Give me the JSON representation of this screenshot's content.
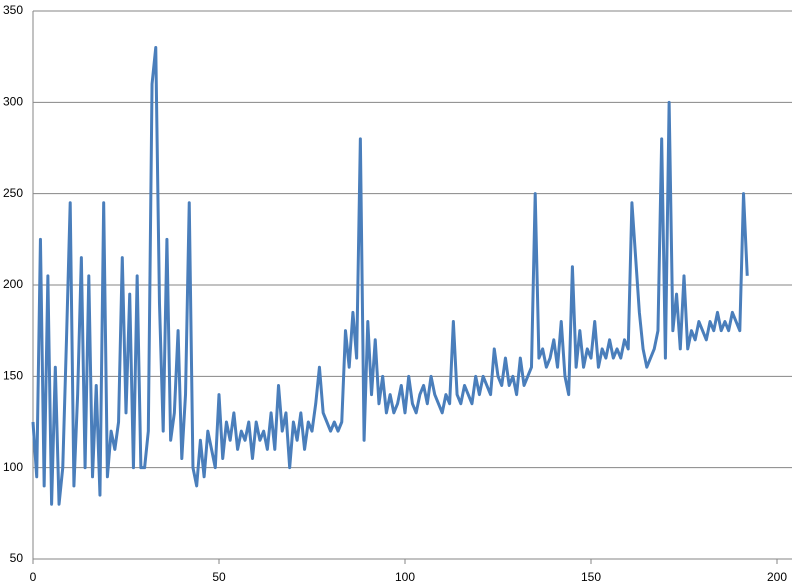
{
  "chart_data": {
    "type": "line",
    "x": [
      0,
      1,
      2,
      3,
      4,
      5,
      6,
      7,
      8,
      9,
      10,
      11,
      12,
      13,
      14,
      15,
      16,
      17,
      18,
      19,
      20,
      21,
      22,
      23,
      24,
      25,
      26,
      27,
      28,
      29,
      30,
      31,
      32,
      33,
      34,
      35,
      36,
      37,
      38,
      39,
      40,
      41,
      42,
      43,
      44,
      45,
      46,
      47,
      48,
      49,
      50,
      51,
      52,
      53,
      54,
      55,
      56,
      57,
      58,
      59,
      60,
      61,
      62,
      63,
      64,
      65,
      66,
      67,
      68,
      69,
      70,
      71,
      72,
      73,
      74,
      75,
      76,
      77,
      78,
      79,
      80,
      81,
      82,
      83,
      84,
      85,
      86,
      87,
      88,
      89,
      90,
      91,
      92,
      93,
      94,
      95,
      96,
      97,
      98,
      99,
      100,
      101,
      102,
      103,
      104,
      105,
      106,
      107,
      108,
      109,
      110,
      111,
      112,
      113,
      114,
      115,
      116,
      117,
      118,
      119,
      120,
      121,
      122,
      123,
      124,
      125,
      126,
      127,
      128,
      129,
      130,
      131,
      132,
      133,
      134,
      135,
      136,
      137,
      138,
      139,
      140,
      141,
      142,
      143,
      144,
      145,
      146,
      147,
      148,
      149,
      150,
      151,
      152,
      153,
      154,
      155,
      156,
      157,
      158,
      159,
      160,
      161,
      162,
      163,
      164,
      165,
      166,
      167,
      168,
      169,
      170,
      171,
      172,
      173,
      174,
      175,
      176,
      177,
      178,
      179,
      180,
      181,
      182,
      183,
      184,
      185,
      186,
      187,
      188,
      189,
      190,
      191,
      192
    ],
    "values": [
      125,
      95,
      225,
      90,
      205,
      80,
      155,
      80,
      100,
      170,
      245,
      90,
      140,
      215,
      100,
      205,
      95,
      145,
      85,
      245,
      95,
      120,
      110,
      125,
      215,
      130,
      195,
      100,
      205,
      100,
      100,
      120,
      310,
      330,
      190,
      120,
      225,
      115,
      130,
      175,
      105,
      140,
      245,
      100,
      90,
      115,
      95,
      120,
      110,
      100,
      140,
      105,
      125,
      115,
      130,
      110,
      120,
      115,
      125,
      105,
      125,
      115,
      120,
      110,
      130,
      110,
      145,
      120,
      130,
      100,
      125,
      115,
      130,
      110,
      125,
      120,
      135,
      155,
      130,
      125,
      120,
      125,
      120,
      125,
      175,
      155,
      185,
      160,
      280,
      115,
      180,
      140,
      170,
      135,
      150,
      130,
      140,
      130,
      135,
      145,
      130,
      150,
      135,
      130,
      140,
      145,
      135,
      150,
      140,
      135,
      130,
      140,
      135,
      180,
      140,
      135,
      145,
      140,
      135,
      150,
      140,
      150,
      145,
      140,
      165,
      150,
      145,
      160,
      145,
      150,
      140,
      160,
      145,
      150,
      155,
      250,
      160,
      165,
      155,
      160,
      170,
      155,
      180,
      150,
      140,
      210,
      155,
      175,
      155,
      165,
      160,
      180,
      155,
      165,
      160,
      170,
      160,
      165,
      160,
      170,
      165,
      245,
      215,
      185,
      165,
      155,
      160,
      165,
      175,
      280,
      160,
      300,
      175,
      195,
      165,
      205,
      165,
      175,
      170,
      180,
      175,
      170,
      180,
      175,
      185,
      175,
      180,
      175,
      185,
      180,
      175,
      250,
      205
    ],
    "color": "#4a7ebb",
    "xlim": [
      0,
      200
    ],
    "xticks": [
      0,
      50,
      100,
      150,
      200
    ],
    "ylim": [
      50,
      350
    ],
    "yticks": [
      50,
      100,
      150,
      200,
      250,
      300,
      350
    ],
    "grid": true
  }
}
